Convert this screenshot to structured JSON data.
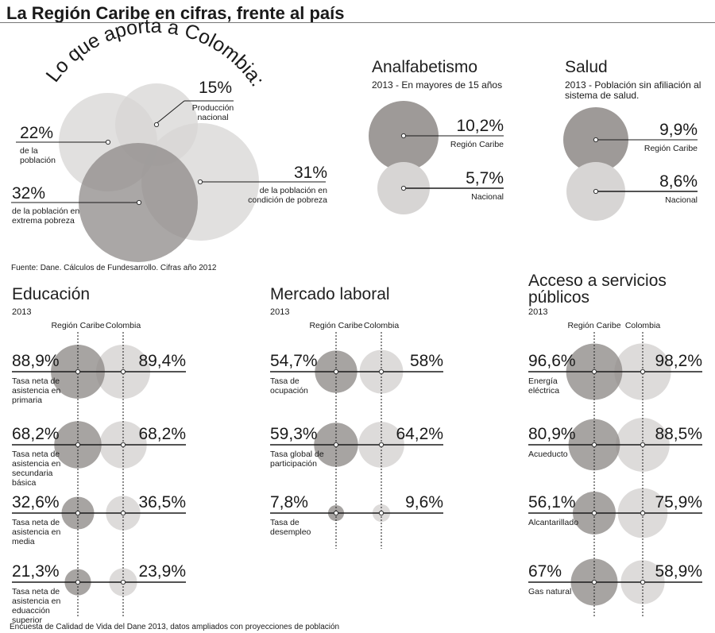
{
  "title": "La Región Caribe en cifras, frente al país",
  "colors": {
    "caribe": "#9e9a98",
    "colombia": "#d7d5d4",
    "line": "#1a1a1a"
  },
  "aporta": {
    "arc_title": "Lo que aporta a Colombia:",
    "source": "Fuente: Dane. Cálculos de Fundesarrollo. Cifras año 2012",
    "items": [
      {
        "pct": "15%",
        "label": "Producción nacional",
        "value": 15
      },
      {
        "pct": "22%",
        "label": "de la población",
        "value": 22
      },
      {
        "pct": "31%",
        "label": "de la población en condición de pobreza",
        "value": 31
      },
      {
        "pct": "32%",
        "label": "de la población en extrema pobreza",
        "value": 32
      }
    ]
  },
  "analfabetismo": {
    "title": "Analfabetismo",
    "subtitle": "2013 - En mayores de 15 años",
    "caribe": {
      "pct": "10,2%",
      "label": "Región Caribe",
      "value": 10.2
    },
    "nacional": {
      "pct": "5,7%",
      "label": "Nacional",
      "value": 5.7
    }
  },
  "salud": {
    "title": "Salud",
    "subtitle": "2013 - Población sin afiliación al sistema de salud.",
    "caribe": {
      "pct": "9,9%",
      "label": "Región Caribe",
      "value": 9.9
    },
    "nacional": {
      "pct": "8,6%",
      "label": "Nacional",
      "value": 8.6
    }
  },
  "col_caribe": "Región Caribe",
  "col_colombia": "Colombia",
  "chart_data": [
    {
      "type": "bubble",
      "title": "Educación",
      "year": "2013",
      "series": [
        {
          "name": "Región Caribe",
          "values": [
            88.9,
            68.2,
            32.6,
            21.3
          ]
        },
        {
          "name": "Colombia",
          "values": [
            89.4,
            68.2,
            36.5,
            23.9
          ]
        }
      ],
      "rows": [
        {
          "label": "Tasa neta de asistencia en primaria",
          "caribe": "88,9%",
          "colombia": "89,4%"
        },
        {
          "label": "Tasa neta de asistencia en secundaria básica",
          "caribe": "68,2%",
          "colombia": "68,2%"
        },
        {
          "label": "Tasa neta de asistencia en media",
          "caribe": "32,6%",
          "colombia": "36,5%"
        },
        {
          "label": "Tasa neta de asistencia en eduacción superior",
          "caribe": "21,3%",
          "colombia": "23,9%"
        }
      ]
    },
    {
      "type": "bubble",
      "title": "Mercado laboral",
      "year": "2013",
      "series": [
        {
          "name": "Región Caribe",
          "values": [
            54.7,
            59.3,
            7.8
          ]
        },
        {
          "name": "Colombia",
          "values": [
            58,
            64.2,
            9.6
          ]
        }
      ],
      "rows": [
        {
          "label": "Tasa de ocupación",
          "caribe": "54,7%",
          "colombia": "58%"
        },
        {
          "label": "Tasa global de participación",
          "caribe": "59,3%",
          "colombia": "64,2%"
        },
        {
          "label": "Tasa de desempleo",
          "caribe": "7,8%",
          "colombia": "9,6%"
        }
      ]
    },
    {
      "type": "bubble",
      "title": "Acceso a servicios públicos",
      "year": "2013",
      "series": [
        {
          "name": "Región Caribe",
          "values": [
            96.6,
            80.9,
            56.1,
            67
          ]
        },
        {
          "name": "Colombia",
          "values": [
            98.2,
            88.5,
            75.9,
            58.9
          ]
        }
      ],
      "rows": [
        {
          "label": "Energía eléctrica",
          "caribe": "96,6%",
          "colombia": "98,2%"
        },
        {
          "label": "Acueducto",
          "caribe": "80,9%",
          "colombia": "88,5%"
        },
        {
          "label": "Alcantarillado",
          "caribe": "56,1%",
          "colombia": "75,9%"
        },
        {
          "label": "Gas natural",
          "caribe": "67%",
          "colombia": "58,9%"
        }
      ]
    }
  ],
  "footer": "Encuesta de Calidad de Vida del Dane 2013, datos ampliados con proyecciones de población"
}
